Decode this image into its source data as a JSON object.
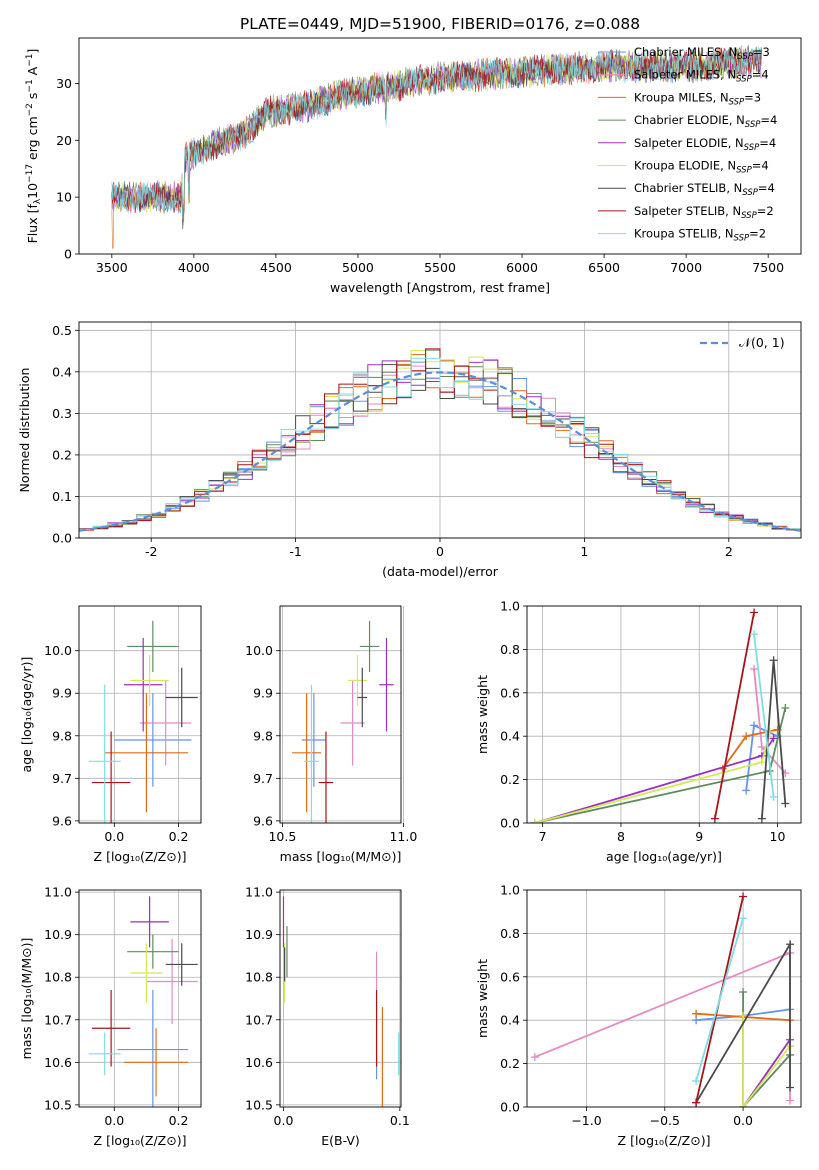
{
  "figure_title": "PLATE=0449, MJD=51900, FIBERID=0176, z=0.088",
  "colors": {
    "chabrier_miles": "#6495ED",
    "salpeter_miles": "#E78AC3",
    "kroupa_miles": "#E06C1A",
    "chabrier_elodie": "#5E8C5E",
    "salpeter_elodie": "#9B30C0",
    "kroupa_elodie": "#D4E85A",
    "chabrier_stelib": "#4A4A4A",
    "salpeter_stelib": "#A8141A",
    "kroupa_stelib": "#7FDDE6",
    "gaussian": "#5B8FD9",
    "grid": "#b0b0b0"
  },
  "chart_data": [
    {
      "id": "spectrum",
      "type": "line",
      "title": "PLATE=0449, MJD=51900, FIBERID=0176, z=0.088",
      "xlabel": "wavelength [Angstrom, rest frame]",
      "ylabel_parts": [
        "Flux [f",
        "λ",
        "10",
        "−17",
        " erg cm",
        "−2",
        " s",
        "−1",
        " A",
        "−1",
        "]"
      ],
      "xlim": [
        3300,
        7700
      ],
      "ylim": [
        0,
        38
      ],
      "xticks": [
        3500,
        4000,
        4500,
        5000,
        5500,
        6000,
        6500,
        7000,
        7500
      ],
      "yticks": [
        0,
        10,
        20,
        30
      ],
      "grid": false,
      "legend_position": "top-right",
      "continuum": [
        [
          3500,
          10
        ],
        [
          3800,
          10
        ],
        [
          3920,
          10
        ],
        [
          3950,
          17
        ],
        [
          4100,
          19
        ],
        [
          4300,
          21
        ],
        [
          4450,
          25
        ],
        [
          4700,
          26
        ],
        [
          4900,
          28
        ],
        [
          5100,
          29
        ],
        [
          5500,
          31
        ],
        [
          6000,
          32
        ],
        [
          6500,
          33
        ],
        [
          7000,
          33
        ],
        [
          7450,
          34
        ]
      ],
      "series": [
        {
          "name": "Chabrier MILES, N",
          "sub": "SSP",
          "suffix": "=3",
          "color_key": "chabrier_miles"
        },
        {
          "name": "Salpeter MILES, N",
          "sub": "SSP",
          "suffix": "=4",
          "color_key": "salpeter_miles"
        },
        {
          "name": "Kroupa MILES, N",
          "sub": "SSP",
          "suffix": "=3",
          "color_key": "kroupa_miles"
        },
        {
          "name": "Chabrier ELODIE, N",
          "sub": "SSP",
          "suffix": "=4",
          "color_key": "chabrier_elodie"
        },
        {
          "name": "Salpeter ELODIE, N",
          "sub": "SSP",
          "suffix": "=4",
          "color_key": "salpeter_elodie"
        },
        {
          "name": "Kroupa ELODIE, N",
          "sub": "SSP",
          "suffix": "=4",
          "color_key": "kroupa_elodie"
        },
        {
          "name": "Chabrier STELIB, N",
          "sub": "SSP",
          "suffix": "=4",
          "color_key": "chabrier_stelib"
        },
        {
          "name": "Salpeter STELIB, N",
          "sub": "SSP",
          "suffix": "=2",
          "color_key": "salpeter_stelib"
        },
        {
          "name": "Kroupa STELIB, N",
          "sub": "SSP",
          "suffix": "=2",
          "color_key": "kroupa_stelib"
        }
      ]
    },
    {
      "id": "residuals",
      "type": "bar",
      "xlabel": "(data-model)/error",
      "ylabel": "Normed distribution",
      "xlim": [
        -2.5,
        2.5
      ],
      "ylim": [
        0,
        0.52
      ],
      "xticks": [
        -2,
        -1,
        0,
        1,
        2
      ],
      "yticks": [
        0.0,
        0.1,
        0.2,
        0.3,
        0.4,
        0.5
      ],
      "grid": true,
      "legend_position": "top-right",
      "legend_label": "𝒩(0, 1)",
      "bin_width": 0.1,
      "bin_start": -2.5,
      "series_colors": [
        "chabrier_miles",
        "salpeter_miles",
        "kroupa_miles",
        "chabrier_elodie",
        "salpeter_elodie",
        "kroupa_elodie",
        "chabrier_stelib",
        "salpeter_stelib",
        "kroupa_stelib"
      ]
    },
    {
      "id": "age_vs_Z",
      "type": "scatter",
      "xlabel": "Z [log₁₀(Z/Z⊙)]",
      "ylabel": "age  [log₁₀(age/yr)]",
      "xlim": [
        -0.11,
        0.27
      ],
      "ylim": [
        9.595,
        10.105
      ],
      "xticks": [
        0.0,
        0.2
      ],
      "yticks": [
        9.6,
        9.7,
        9.8,
        9.9,
        10.0
      ],
      "grid": true,
      "points": [
        {
          "c": "chabrier_miles",
          "x": 0.12,
          "y": 9.79,
          "xerr": 0.12,
          "yerr": 0.11
        },
        {
          "c": "salpeter_miles",
          "x": 0.16,
          "y": 9.83,
          "xerr": 0.08,
          "yerr": 0.1
        },
        {
          "c": "kroupa_miles",
          "x": 0.1,
          "y": 9.76,
          "xerr": 0.13,
          "yerr": 0.14
        },
        {
          "c": "chabrier_elodie",
          "x": 0.12,
          "y": 10.01,
          "xerr": 0.08,
          "yerr": 0.06
        },
        {
          "c": "salpeter_elodie",
          "x": 0.09,
          "y": 9.92,
          "xerr": 0.06,
          "yerr": 0.11
        },
        {
          "c": "kroupa_elodie",
          "x": 0.11,
          "y": 9.93,
          "xerr": 0.06,
          "yerr": 0.06
        },
        {
          "c": "chabrier_stelib",
          "x": 0.21,
          "y": 9.89,
          "xerr": 0.05,
          "yerr": 0.07
        },
        {
          "c": "salpeter_stelib",
          "x": -0.01,
          "y": 9.69,
          "xerr": 0.06,
          "yerr": 0.12
        },
        {
          "c": "kroupa_stelib",
          "x": -0.03,
          "y": 9.74,
          "xerr": 0.05,
          "yerr": 0.18
        }
      ]
    },
    {
      "id": "age_vs_mass",
      "type": "scatter",
      "xlabel": "mass [log₁₀(M/M⊙)]",
      "xlim": [
        10.49,
        10.99
      ],
      "ylim": [
        9.595,
        10.105
      ],
      "xticks": [
        10.5,
        11.0
      ],
      "yticks": [
        9.6,
        9.7,
        9.8,
        9.9,
        10.0
      ],
      "grid": true,
      "points": [
        {
          "c": "chabrier_miles",
          "x": 10.63,
          "y": 9.79,
          "xerr": 0.05,
          "yerr": 0.11
        },
        {
          "c": "salpeter_miles",
          "x": 10.79,
          "y": 9.83,
          "xerr": 0.05,
          "yerr": 0.1
        },
        {
          "c": "kroupa_miles",
          "x": 10.6,
          "y": 9.76,
          "xerr": 0.06,
          "yerr": 0.14
        },
        {
          "c": "chabrier_elodie",
          "x": 10.86,
          "y": 10.01,
          "xerr": 0.04,
          "yerr": 0.06
        },
        {
          "c": "salpeter_elodie",
          "x": 10.93,
          "y": 9.92,
          "xerr": 0.03,
          "yerr": 0.11
        },
        {
          "c": "kroupa_elodie",
          "x": 10.81,
          "y": 9.93,
          "xerr": 0.04,
          "yerr": 0.06
        },
        {
          "c": "chabrier_stelib",
          "x": 10.83,
          "y": 9.89,
          "xerr": 0.02,
          "yerr": 0.07
        },
        {
          "c": "salpeter_stelib",
          "x": 10.68,
          "y": 9.69,
          "xerr": 0.03,
          "yerr": 0.12
        },
        {
          "c": "kroupa_stelib",
          "x": 10.62,
          "y": 9.74,
          "xerr": 0.03,
          "yerr": 0.18
        }
      ]
    },
    {
      "id": "weight_vs_age",
      "type": "line",
      "xlabel": "age  [log₁₀(age/yr)]",
      "ylabel": "mass weight",
      "xlim": [
        6.8,
        10.3
      ],
      "ylim": [
        0,
        1
      ],
      "xticks": [
        7,
        8,
        9,
        10
      ],
      "yticks": [
        0.0,
        0.2,
        0.4,
        0.6,
        0.8,
        1.0
      ],
      "grid": true,
      "series": [
        {
          "c": "chabrier_miles",
          "x": [
            9.6,
            9.7,
            10.0
          ],
          "y": [
            0.15,
            0.45,
            0.4
          ]
        },
        {
          "c": "salpeter_miles",
          "x": [
            9.7,
            9.8,
            10.1
          ],
          "y": [
            0.71,
            0.35,
            0.23
          ]
        },
        {
          "c": "kroupa_miles",
          "x": [
            9.3,
            9.6,
            10.0
          ],
          "y": [
            0.25,
            0.4,
            0.43
          ]
        },
        {
          "c": "chabrier_elodie",
          "x": [
            6.9,
            9.9,
            10.1
          ],
          "y": [
            0.0,
            0.24,
            0.53
          ]
        },
        {
          "c": "salpeter_elodie",
          "x": [
            6.9,
            9.8,
            9.95
          ],
          "y": [
            0.0,
            0.31,
            0.39
          ]
        },
        {
          "c": "kroupa_elodie",
          "x": [
            6.9,
            9.8,
            9.9
          ],
          "y": [
            0.0,
            0.28,
            0.42
          ]
        },
        {
          "c": "chabrier_stelib",
          "x": [
            9.8,
            9.95,
            10.1
          ],
          "y": [
            0.02,
            0.75,
            0.09
          ]
        },
        {
          "c": "salpeter_stelib",
          "x": [
            9.2,
            9.7
          ],
          "y": [
            0.02,
            0.97
          ]
        },
        {
          "c": "kroupa_stelib",
          "x": [
            9.7,
            9.95
          ],
          "y": [
            0.87,
            0.12
          ]
        }
      ]
    },
    {
      "id": "mass_vs_Z",
      "type": "scatter",
      "xlabel": "Z [log₁₀(Z/Z⊙)]",
      "ylabel": "mass [log₁₀(M/M⊙)]",
      "xlim": [
        -0.11,
        0.27
      ],
      "ylim": [
        10.495,
        11.005
      ],
      "xticks": [
        0.0,
        0.2
      ],
      "yticks": [
        10.5,
        10.6,
        10.7,
        10.8,
        10.9,
        11.0
      ],
      "grid": true,
      "points": [
        {
          "c": "chabrier_miles",
          "x": 0.12,
          "y": 10.63,
          "xerr": 0.11,
          "yerr": 0.14
        },
        {
          "c": "salpeter_miles",
          "x": 0.18,
          "y": 10.79,
          "xerr": 0.08,
          "yerr": 0.1
        },
        {
          "c": "kroupa_miles",
          "x": 0.13,
          "y": 10.6,
          "xerr": 0.1,
          "yerr": 0.08
        },
        {
          "c": "chabrier_elodie",
          "x": 0.12,
          "y": 10.86,
          "xerr": 0.08,
          "yerr": 0.04
        },
        {
          "c": "salpeter_elodie",
          "x": 0.11,
          "y": 10.93,
          "xerr": 0.06,
          "yerr": 0.06
        },
        {
          "c": "kroupa_elodie",
          "x": 0.1,
          "y": 10.81,
          "xerr": 0.05,
          "yerr": 0.07
        },
        {
          "c": "chabrier_stelib",
          "x": 0.21,
          "y": 10.83,
          "xerr": 0.05,
          "yerr": 0.05
        },
        {
          "c": "salpeter_stelib",
          "x": -0.01,
          "y": 10.68,
          "xerr": 0.06,
          "yerr": 0.09
        },
        {
          "c": "kroupa_stelib",
          "x": -0.03,
          "y": 10.62,
          "xerr": 0.05,
          "yerr": 0.05
        }
      ]
    },
    {
      "id": "mass_vs_ebv",
      "type": "scatter",
      "xlabel": "E(B-V)",
      "xlim": [
        -0.003,
        0.101
      ],
      "ylim": [
        10.495,
        11.005
      ],
      "xticks": [
        0.0,
        0.1
      ],
      "yticks": [
        10.5,
        10.6,
        10.7,
        10.8,
        10.9,
        11.0
      ],
      "grid": true,
      "points": [
        {
          "c": "chabrier_miles",
          "x": 0.08,
          "y": 10.63,
          "xerr": 0.0,
          "yerr": 0.07
        },
        {
          "c": "salpeter_miles",
          "x": 0.08,
          "y": 10.79,
          "xerr": 0.0,
          "yerr": 0.07
        },
        {
          "c": "kroupa_miles",
          "x": 0.085,
          "y": 10.6,
          "xerr": 0.0,
          "yerr": 0.13
        },
        {
          "c": "chabrier_elodie",
          "x": 0.003,
          "y": 10.86,
          "xerr": 0.0,
          "yerr": 0.06
        },
        {
          "c": "salpeter_elodie",
          "x": 0.0,
          "y": 10.93,
          "xerr": 0.0,
          "yerr": 0.06
        },
        {
          "c": "kroupa_elodie",
          "x": 0.001,
          "y": 10.81,
          "xerr": 0.0,
          "yerr": 0.07
        },
        {
          "c": "chabrier_stelib",
          "x": 0.001,
          "y": 10.83,
          "xerr": 0.0,
          "yerr": 0.04
        },
        {
          "c": "salpeter_stelib",
          "x": 0.08,
          "y": 10.68,
          "xerr": 0.0,
          "yerr": 0.09
        },
        {
          "c": "kroupa_stelib",
          "x": 0.099,
          "y": 10.62,
          "xerr": 0.0,
          "yerr": 0.05
        }
      ]
    },
    {
      "id": "weight_vs_Z",
      "type": "line",
      "xlabel": "Z [log₁₀(Z/Z⊙)]",
      "ylabel": "mass weight",
      "xlim": [
        -1.38,
        0.37
      ],
      "ylim": [
        0,
        1
      ],
      "xticks": [
        -1.0,
        -0.5,
        0.0
      ],
      "yticks": [
        0.0,
        0.2,
        0.4,
        0.6,
        0.8,
        1.0
      ],
      "grid": true,
      "series": [
        {
          "c": "chabrier_miles",
          "x": [
            -0.3,
            0.0,
            0.3
          ],
          "y": [
            0.4,
            0.42,
            0.45
          ]
        },
        {
          "c": "salpeter_miles",
          "x": [
            -1.33,
            0.3,
            0.3
          ],
          "y": [
            0.23,
            0.71,
            0.03
          ]
        },
        {
          "c": "kroupa_miles",
          "x": [
            -0.3,
            0.3
          ],
          "y": [
            0.43,
            0.4
          ]
        },
        {
          "c": "chabrier_elodie",
          "x": [
            0.0,
            0.0,
            0.3
          ],
          "y": [
            0.53,
            0.0,
            0.24
          ]
        },
        {
          "c": "salpeter_elodie",
          "x": [
            0.0,
            0.3,
            0.3
          ],
          "y": [
            0.0,
            0.31,
            0.28
          ]
        },
        {
          "c": "kroupa_elodie",
          "x": [
            0.0,
            0.0,
            0.3
          ],
          "y": [
            0.42,
            0.0,
            0.28
          ]
        },
        {
          "c": "chabrier_stelib",
          "x": [
            -0.3,
            0.3,
            0.3
          ],
          "y": [
            0.02,
            0.75,
            0.09
          ]
        },
        {
          "c": "salpeter_stelib",
          "x": [
            -0.3,
            0.0
          ],
          "y": [
            0.02,
            0.97
          ]
        },
        {
          "c": "kroupa_stelib",
          "x": [
            -0.3,
            0.0
          ],
          "y": [
            0.12,
            0.87
          ]
        }
      ]
    }
  ]
}
